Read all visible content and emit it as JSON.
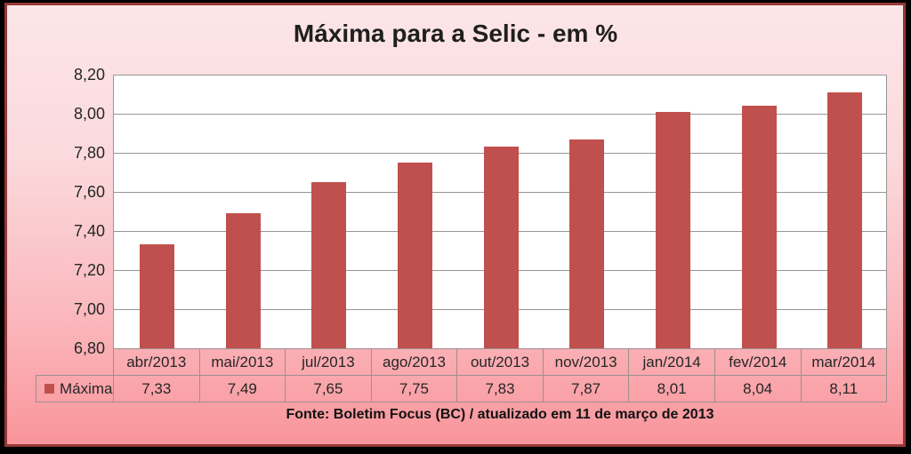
{
  "title": "Máxima para a Selic - em %",
  "source_note": "Fonte: Boletim Focus (BC) / atualizado em 11 de março de 2013",
  "legend": {
    "label": "Máxima"
  },
  "colors": {
    "bar": "#C0504D",
    "panel_border": "#953735",
    "frame": "#000000",
    "background_top": "#FCE6E8",
    "background_bottom": "#F9959B",
    "grid": "#969696",
    "table_border": "#9E8F8F",
    "text": "#262626"
  },
  "chart_data": {
    "type": "bar",
    "title": "Máxima para a Selic - em %",
    "categories": [
      "abr/2013",
      "mai/2013",
      "jul/2013",
      "ago/2013",
      "out/2013",
      "nov/2013",
      "jan/2014",
      "fev/2014",
      "mar/2014"
    ],
    "series": [
      {
        "name": "Máxima",
        "values": [
          7.33,
          7.49,
          7.65,
          7.75,
          7.83,
          7.87,
          8.01,
          8.04,
          8.11
        ]
      }
    ],
    "values_display": [
      "7,33",
      "7,49",
      "7,65",
      "7,75",
      "7,83",
      "7,87",
      "8,01",
      "8,04",
      "8,11"
    ],
    "xlabel": "",
    "ylabel": "",
    "ylim": [
      6.8,
      8.2
    ],
    "ytick_step": 0.2,
    "ytick_labels": [
      "8,20",
      "8,00",
      "7,80",
      "7,60",
      "7,40",
      "7,20",
      "7,00",
      "6,80"
    ],
    "grid": true,
    "legend_position": "table-row-header"
  }
}
